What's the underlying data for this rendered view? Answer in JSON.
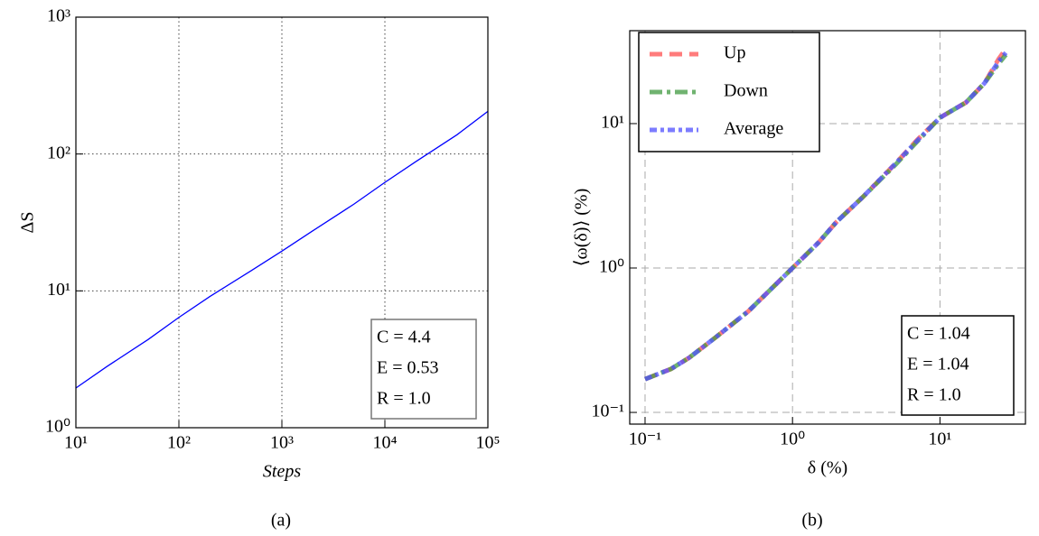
{
  "chart_data": [
    {
      "type": "line",
      "caption": "(a)",
      "xlabel": "Steps",
      "ylabel": "ΔS",
      "xscale": "log",
      "yscale": "log",
      "grid": "dotted",
      "x": [
        10,
        20,
        50,
        100,
        200,
        500,
        1000,
        2000,
        5000,
        10000,
        20000,
        50000,
        100000
      ],
      "values": [
        1.95,
        2.8,
        4.4,
        6.4,
        9.1,
        14,
        19.5,
        27.5,
        43,
        62,
        88,
        138,
        205
      ],
      "color": "#0000ff",
      "xlim": [
        10,
        100000
      ],
      "xticks": [
        {
          "value": 10,
          "label": "10¹"
        },
        {
          "value": 100,
          "label": "10²"
        },
        {
          "value": 1000,
          "label": "10³"
        },
        {
          "value": 10000,
          "label": "10⁴"
        },
        {
          "value": 100000,
          "label": "10⁵"
        }
      ],
      "ylim": [
        1,
        1000
      ],
      "yticks": [
        {
          "value": 1,
          "label": "10⁰"
        },
        {
          "value": 10,
          "label": "10¹"
        },
        {
          "value": 100,
          "label": "10²"
        },
        {
          "value": 1000,
          "label": "10³"
        }
      ],
      "annotations": [
        "C = 4.4",
        "E = 0.53",
        "R = 1.0"
      ]
    },
    {
      "type": "line",
      "caption": "(b)",
      "xlabel": "δ (%)",
      "ylabel": "⟨ω(δ)⟩ (%)",
      "xscale": "log",
      "yscale": "log",
      "grid": "dashed",
      "legend": "upper left",
      "x": [
        0.1,
        0.15,
        0.2,
        0.3,
        0.5,
        0.7,
        1,
        1.5,
        2,
        3,
        5,
        7,
        10,
        15,
        20,
        25,
        28
      ],
      "series": [
        {
          "name": "Up",
          "color": "#ff5050",
          "values": [
            0.17,
            0.2,
            0.24,
            0.33,
            0.5,
            0.7,
            1.0,
            1.5,
            2.1,
            3.1,
            5.3,
            7.7,
            11,
            14,
            19,
            28,
            33
          ]
        },
        {
          "name": "Down",
          "color": "#409a40",
          "values": [
            0.17,
            0.2,
            0.24,
            0.33,
            0.5,
            0.7,
            1.0,
            1.5,
            2.1,
            3.1,
            5.2,
            7.5,
            11,
            14,
            19,
            26,
            30
          ]
        },
        {
          "name": "Average",
          "color": "#5050ff",
          "values": [
            0.17,
            0.2,
            0.24,
            0.33,
            0.5,
            0.7,
            1.0,
            1.5,
            2.1,
            3.1,
            5.3,
            7.6,
            11,
            14,
            19,
            27,
            31
          ]
        }
      ],
      "xlim": [
        0.0787,
        38
      ],
      "xticks": [
        {
          "value": 0.1,
          "label": "10⁻¹"
        },
        {
          "value": 1,
          "label": "10⁰"
        },
        {
          "value": 10,
          "label": "10¹"
        }
      ],
      "ylim": [
        0.083,
        44
      ],
      "yticks": [
        {
          "value": 0.1,
          "label": "10⁻¹"
        },
        {
          "value": 1,
          "label": "10⁰"
        },
        {
          "value": 10,
          "label": "10¹"
        }
      ],
      "annotations": [
        "C = 1.04",
        "E = 1.04",
        "R = 1.0"
      ]
    }
  ]
}
